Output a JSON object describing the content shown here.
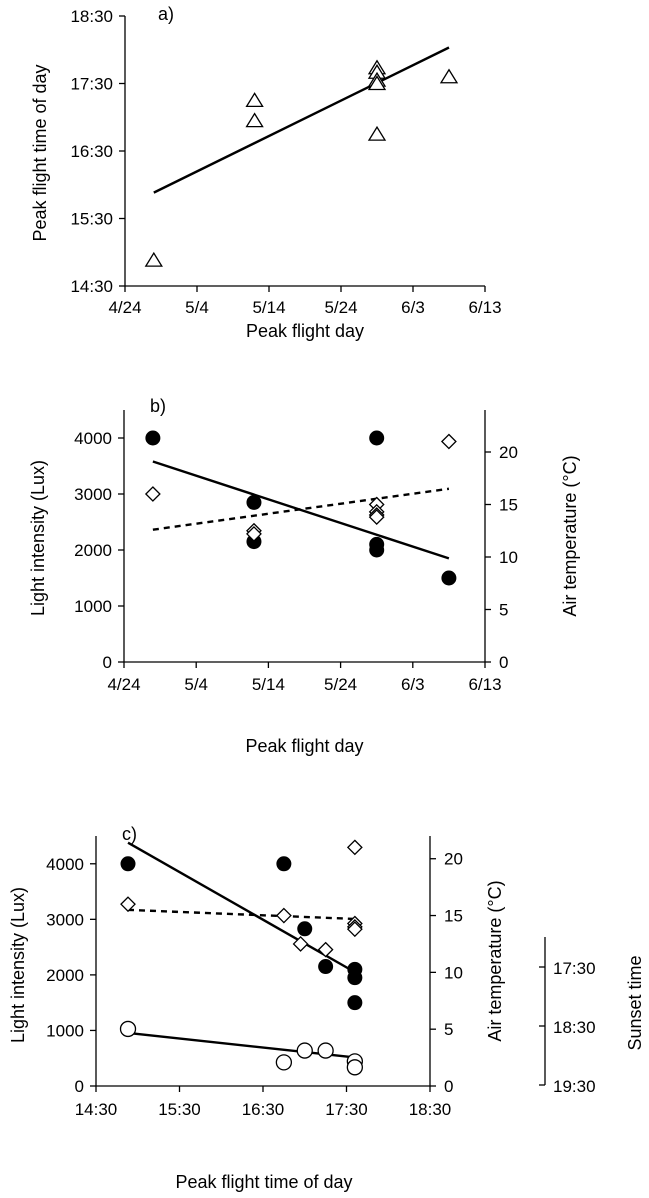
{
  "chart_data": [
    {
      "type": "scatter",
      "panel_label": "a)",
      "xlabel": "Peak flight day",
      "ylabel": "Peak flight time of day",
      "x_ticks": [
        "4/24",
        "5/4",
        "5/14",
        "5/24",
        "6/3",
        "6/13"
      ],
      "y_ticks": [
        "14:30",
        "15:30",
        "16:30",
        "17:30",
        "18:30"
      ],
      "xlim": [
        "4/24",
        "6/13"
      ],
      "ylim": [
        "14:30",
        "18:30"
      ],
      "series": [
        {
          "marker": "open-triangle",
          "points": [
            {
              "x": "4/28",
              "y": "14:53"
            },
            {
              "x": "5/12",
              "y": "17:15"
            },
            {
              "x": "5/12",
              "y": "16:57"
            },
            {
              "x": "5/29",
              "y": "17:44"
            },
            {
              "x": "5/29",
              "y": "17:40"
            },
            {
              "x": "5/29",
              "y": "17:33"
            },
            {
              "x": "5/29",
              "y": "17:30"
            },
            {
              "x": "5/29",
              "y": "16:45"
            },
            {
              "x": "6/8",
              "y": "17:36"
            }
          ]
        }
      ],
      "trend_lines": [
        {
          "style": "solid",
          "from": {
            "x": "4/28",
            "y": "15:53"
          },
          "to": {
            "x": "6/8",
            "y": "18:02"
          }
        }
      ]
    },
    {
      "type": "scatter",
      "panel_label": "b)",
      "xlabel": "Peak flight day",
      "ylabel": "Light intensity (Lux)",
      "y2label": "Air temperature (°C)",
      "x_ticks": [
        "4/24",
        "5/4",
        "5/14",
        "5/24",
        "6/3",
        "6/13"
      ],
      "y_ticks": [
        "0",
        "1000",
        "2000",
        "3000",
        "4000"
      ],
      "y2_ticks": [
        "0",
        "5",
        "10",
        "15",
        "20"
      ],
      "xlim": [
        "4/24",
        "6/13"
      ],
      "ylim": [
        0,
        4500
      ],
      "y2lim": [
        0,
        24
      ],
      "series": [
        {
          "marker": "filled-circle",
          "axis": "left",
          "points": [
            {
              "x": "4/28",
              "y": 4000
            },
            {
              "x": "5/12",
              "y": 2850
            },
            {
              "x": "5/12",
              "y": 2150
            },
            {
              "x": "5/29",
              "y": 4000
            },
            {
              "x": "5/29",
              "y": 2100
            },
            {
              "x": "5/29",
              "y": 2000
            },
            {
              "x": "6/8",
              "y": 1500
            }
          ]
        },
        {
          "marker": "open-diamond",
          "axis": "right",
          "points": [
            {
              "x": "4/28",
              "y": 16.0
            },
            {
              "x": "5/12",
              "y": 12.5
            },
            {
              "x": "5/12",
              "y": 12.2
            },
            {
              "x": "5/29",
              "y": 15.0
            },
            {
              "x": "5/29",
              "y": 14.3
            },
            {
              "x": "5/29",
              "y": 14.0
            },
            {
              "x": "5/29",
              "y": 13.8
            },
            {
              "x": "6/8",
              "y": 21.0
            }
          ]
        }
      ],
      "trend_lines": [
        {
          "style": "solid",
          "axis": "left",
          "from": {
            "x": "4/28",
            "y": 3580
          },
          "to": {
            "x": "6/8",
            "y": 1850
          }
        },
        {
          "style": "dashed",
          "axis": "right",
          "from": {
            "x": "4/28",
            "y": 12.6
          },
          "to": {
            "x": "6/8",
            "y": 16.5
          }
        }
      ]
    },
    {
      "type": "scatter",
      "panel_label": "c)",
      "xlabel": "Peak flight time of day",
      "ylabel": "Light intensity (Lux)",
      "y2label": "Air temperature (°C)",
      "y3label": "Sunset time",
      "x_ticks": [
        "14:30",
        "15:30",
        "16:30",
        "17:30",
        "18:30"
      ],
      "y_ticks": [
        "0",
        "1000",
        "2000",
        "3000",
        "4000"
      ],
      "y2_ticks": [
        "0",
        "5",
        "10",
        "15",
        "20"
      ],
      "y3_ticks": [
        "17:30",
        "18:30",
        "19:30"
      ],
      "xlim": [
        "14:30",
        "18:30"
      ],
      "ylim": [
        0,
        4500
      ],
      "y2lim": [
        0,
        22
      ],
      "series": [
        {
          "marker": "filled-circle",
          "axis": "left",
          "points": [
            {
              "x": "14:53",
              "y": 4000
            },
            {
              "x": "16:45",
              "y": 4000
            },
            {
              "x": "17:00",
              "y": 2830
            },
            {
              "x": "17:15",
              "y": 2150
            },
            {
              "x": "17:36",
              "y": 2100
            },
            {
              "x": "17:36",
              "y": 1950
            },
            {
              "x": "17:36",
              "y": 1500
            }
          ]
        },
        {
          "marker": "open-diamond",
          "axis": "right",
          "points": [
            {
              "x": "14:53",
              "y": 16.0
            },
            {
              "x": "16:45",
              "y": 15.0
            },
            {
              "x": "16:57",
              "y": 12.5
            },
            {
              "x": "17:15",
              "y": 12.0
            },
            {
              "x": "17:36",
              "y": 21.0
            },
            {
              "x": "17:36",
              "y": 14.3
            },
            {
              "x": "17:36",
              "y": 14.0
            },
            {
              "x": "17:36",
              "y": 13.8
            }
          ]
        },
        {
          "marker": "open-circle",
          "axis": "sunset",
          "points": [
            {
              "x": "14:53",
              "y": "18:33"
            },
            {
              "x": "16:45",
              "y": "19:07"
            },
            {
              "x": "17:00",
              "y": "18:55"
            },
            {
              "x": "17:15",
              "y": "18:55"
            },
            {
              "x": "17:36",
              "y": "19:06"
            },
            {
              "x": "17:36",
              "y": "19:12"
            }
          ]
        }
      ],
      "trend_lines": [
        {
          "style": "solid",
          "axis": "left",
          "from": {
            "x": "14:53",
            "y": 4380
          },
          "to": {
            "x": "17:36",
            "y": 2050
          }
        },
        {
          "style": "dashed",
          "axis": "right",
          "from": {
            "x": "14:53",
            "y": 15.5
          },
          "to": {
            "x": "17:36",
            "y": 14.7
          }
        },
        {
          "style": "solid",
          "axis": "sunset",
          "from": {
            "x": "14:53",
            "y": "18:37"
          },
          "to": {
            "x": "17:36",
            "y": "19:02"
          }
        }
      ]
    }
  ]
}
